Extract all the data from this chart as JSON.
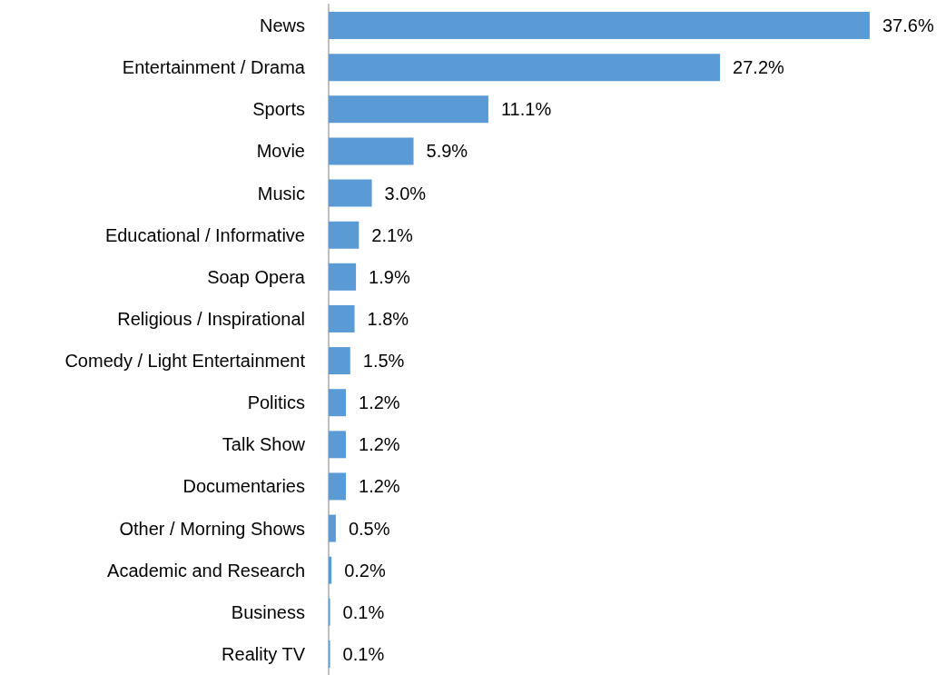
{
  "chart_data": {
    "type": "bar",
    "orientation": "horizontal",
    "color": "#5b9bd5",
    "categories": [
      "News",
      "Entertainment / Drama",
      "Sports",
      "Movie",
      "Music",
      "Educational / Informative",
      "Soap Opera",
      "Religious / Inspirational",
      "Comedy / Light Entertainment",
      "Politics",
      "Talk Show",
      "Documentaries",
      "Other / Morning Shows",
      "Academic and Research",
      "Business",
      "Reality TV"
    ],
    "values": [
      37.6,
      27.2,
      11.1,
      5.9,
      3.0,
      2.1,
      1.9,
      1.8,
      1.5,
      1.2,
      1.2,
      1.2,
      0.5,
      0.2,
      0.1,
      0.1
    ],
    "value_labels": [
      "37.6%",
      "27.2%",
      "11.1%",
      "5.9%",
      "3.0%",
      "2.1%",
      "1.9%",
      "1.8%",
      "1.5%",
      "1.2%",
      "1.2%",
      "1.2%",
      "0.5%",
      "0.2%",
      "0.1%",
      "0.1%"
    ]
  }
}
